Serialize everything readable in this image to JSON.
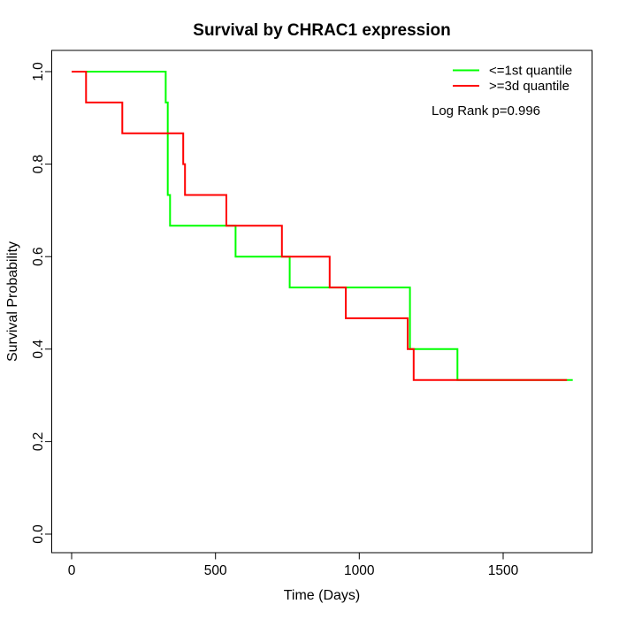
{
  "chart_data": {
    "type": "line",
    "subtype": "kaplan-meier-step",
    "title": "Survival by CHRAC1 expression",
    "xlabel": "Time (Days)",
    "ylabel": "Survival Probability",
    "xlim": [
      0,
      1810
    ],
    "ylim": [
      0,
      1
    ],
    "x_ticks": [
      "0",
      "500",
      "1000",
      "1500"
    ],
    "y_ticks": [
      "0.0",
      "0.2",
      "0.4",
      "0.6",
      "0.8",
      "1.0"
    ],
    "grid": "off",
    "legend_position": "top-right",
    "annotation": "Log Rank p=0.996",
    "series": [
      {
        "name": "<=1st quantile",
        "color": "#00ff00",
        "end_time": 1742,
        "steps": [
          [
            0,
            1.0
          ],
          [
            327,
            0.9333
          ],
          [
            334,
            0.7333
          ],
          [
            342,
            0.6667
          ],
          [
            570,
            0.6
          ],
          [
            758,
            0.5333
          ],
          [
            1176,
            0.4
          ],
          [
            1341,
            0.3333
          ]
        ]
      },
      {
        "name": ">=3d quantile",
        "color": "#ff0000",
        "end_time": 1722,
        "steps": [
          [
            0,
            1.0
          ],
          [
            50,
            0.9333
          ],
          [
            176,
            0.8667
          ],
          [
            388,
            0.8
          ],
          [
            394,
            0.7333
          ],
          [
            538,
            0.6667
          ],
          [
            731,
            0.6
          ],
          [
            897,
            0.5333
          ],
          [
            953,
            0.4667
          ],
          [
            1168,
            0.4
          ],
          [
            1189,
            0.3333
          ]
        ]
      }
    ]
  }
}
